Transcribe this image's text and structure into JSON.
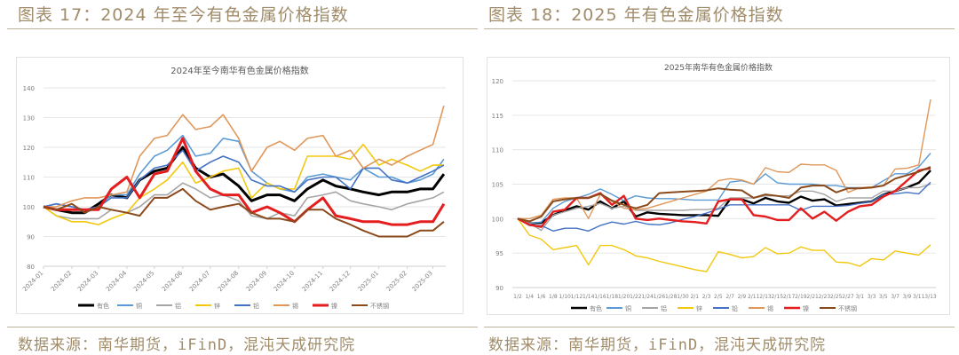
{
  "left": {
    "figure_title": "图表 17：2024 年至今有色金属价格指数",
    "source": "数据来源：南华期货，iFinD，混沌天成研究院"
  },
  "right": {
    "figure_title": "图表 18：2025 年有色金属价格指数",
    "source": "数据来源：南华期货，iFinD，混沌天成研究院"
  },
  "colors": {
    "text": "#a08c6a",
    "rule": "#bfb29a"
  },
  "chart_data": [
    {
      "type": "line",
      "title": "2024年至今南华有色金属价格指数",
      "xlabel": "",
      "ylabel": "",
      "ylim": [
        80,
        140
      ],
      "yticks": [
        80,
        90,
        100,
        110,
        120,
        130,
        140
      ],
      "grid": true,
      "legend": "bottom",
      "tick_labels": [
        "2024-01",
        "2024-02",
        "2024-03",
        "2024-04",
        "2024-05",
        "2024-06",
        "2024-07",
        "2024-08",
        "2024-09",
        "2024-10",
        "2024-11",
        "2024-12",
        "2025-01",
        "2025-02",
        "2025-03"
      ],
      "x": [
        "2024-01-01",
        "2024-01-15",
        "2024-02-01",
        "2024-02-15",
        "2024-03-01",
        "2024-03-15",
        "2024-04-01",
        "2024-04-15",
        "2024-05-01",
        "2024-05-15",
        "2024-06-01",
        "2024-06-15",
        "2024-07-01",
        "2024-07-15",
        "2024-08-01",
        "2024-08-15",
        "2024-09-01",
        "2024-09-15",
        "2024-10-01",
        "2024-10-15",
        "2024-11-01",
        "2024-11-15",
        "2024-12-01",
        "2024-12-15",
        "2025-01-01",
        "2025-01-15",
        "2025-02-01",
        "2025-02-15",
        "2025-03-01",
        "2025-03-13"
      ],
      "series": [
        {
          "name": "有色",
          "color": "#000000",
          "width": 3,
          "values": [
            100,
            99,
            98,
            98,
            101,
            104,
            103,
            109,
            112,
            113,
            120,
            113,
            110,
            111,
            107,
            102,
            104,
            104,
            102,
            106,
            109,
            107,
            106,
            105,
            104,
            105,
            105,
            106,
            106,
            111
          ]
        },
        {
          "name": "铜",
          "color": "#5b9bd5",
          "width": 1.6,
          "values": [
            100,
            101,
            100,
            99,
            100,
            104,
            104,
            111,
            117,
            119,
            124,
            117,
            118,
            123,
            122,
            112,
            108,
            106,
            105,
            110,
            111,
            110,
            109,
            113,
            110,
            110,
            108,
            109,
            111,
            116
          ]
        },
        {
          "name": "铝",
          "color": "#a5a5a5",
          "width": 1.6,
          "values": [
            100,
            97,
            96,
            96,
            96,
            99,
            98,
            100,
            104,
            104,
            108,
            106,
            103,
            104,
            102,
            97,
            96,
            98,
            97,
            103,
            104,
            105,
            102,
            101,
            100,
            99,
            101,
            102,
            103,
            105
          ]
        },
        {
          "name": "锌",
          "color": "#f2c80f",
          "width": 1.6,
          "values": [
            100,
            97,
            95,
            95,
            94,
            96,
            98,
            103,
            106,
            109,
            115,
            108,
            110,
            112,
            113,
            103,
            108,
            106,
            106,
            117,
            117,
            117,
            116,
            121,
            114,
            116,
            114,
            112,
            114,
            114
          ]
        },
        {
          "name": "铅",
          "color": "#4472c4",
          "width": 1.6,
          "values": [
            100,
            101,
            100,
            99,
            100,
            103,
            103,
            109,
            113,
            114,
            119,
            112,
            115,
            117,
            115,
            109,
            107,
            107,
            105,
            109,
            110,
            110,
            106,
            113,
            113,
            109,
            108,
            110,
            112,
            114
          ]
        },
        {
          "name": "锡",
          "color": "#e0975a",
          "width": 1.6,
          "values": [
            100,
            100,
            102,
            103,
            103,
            104,
            105,
            117,
            123,
            124,
            131,
            126,
            127,
            131,
            123,
            112,
            120,
            122,
            119,
            123,
            124,
            117,
            119,
            113,
            116,
            114,
            117,
            119,
            121,
            134
          ]
        },
        {
          "name": "镍",
          "color": "#e41e1e",
          "width": 3,
          "values": [
            100,
            99,
            99,
            99,
            99,
            106,
            110,
            103,
            111,
            112,
            123,
            112,
            106,
            104,
            104,
            98,
            100,
            98,
            95,
            99,
            103,
            97,
            96,
            95,
            95,
            94,
            94,
            95,
            95,
            101
          ]
        },
        {
          "name": "不锈钢",
          "color": "#8b4a1c",
          "width": 2,
          "values": [
            100,
            99,
            101,
            98,
            100,
            99,
            98,
            97,
            103,
            103,
            106,
            102,
            99,
            100,
            101,
            98,
            96,
            96,
            95,
            99,
            99,
            96,
            94,
            92,
            90,
            90,
            90,
            92,
            92,
            95
          ]
        }
      ]
    },
    {
      "type": "line",
      "title": "2025年南华有色金属价格指数",
      "xlabel": "",
      "ylabel": "",
      "ylim": [
        90,
        120
      ],
      "yticks": [
        90,
        95,
        100,
        105,
        110,
        115,
        120
      ],
      "grid": true,
      "legend": "bottom",
      "x": [
        "1/2",
        "1/4",
        "1/6",
        "1/8",
        "1/10",
        "1/12",
        "1/14",
        "1/16",
        "1/18",
        "1/20",
        "1/22",
        "1/24",
        "1/26",
        "1/28",
        "1/30",
        "2/1",
        "2/3",
        "2/5",
        "2/7",
        "2/9",
        "2/11",
        "2/13",
        "2/15",
        "2/17",
        "2/19",
        "2/21",
        "2/23",
        "2/25",
        "2/27",
        "3/1",
        "3/3",
        "3/5",
        "3/7",
        "3/9",
        "3/11",
        "3/13"
      ],
      "series": [
        {
          "name": "有色",
          "color": "#000000",
          "width": 2.4,
          "values": [
            100,
            99.3,
            99.4,
            100.5,
            101.2,
            101.8,
            101.3,
            102.5,
            101.5,
            102.5,
            100.3,
            100.9,
            100.7,
            100.6,
            100.5,
            100.5,
            100.5,
            100.4,
            102.8,
            102.8,
            102.2,
            103.0,
            102.5,
            102.3,
            103.2,
            102.6,
            102.8,
            101.9,
            102.1,
            102.3,
            102.5,
            103.5,
            104.0,
            104.5,
            105.2,
            107.0
          ]
        },
        {
          "name": "铜",
          "color": "#5b9bd5",
          "width": 1.4,
          "values": [
            100,
            99.3,
            99.5,
            101.5,
            102.5,
            103.0,
            103.5,
            104.3,
            103.5,
            102.6,
            103.3,
            103.0,
            102.9,
            102.9,
            102.8,
            102.7,
            102.7,
            102.7,
            105.3,
            105.5,
            105.0,
            106.5,
            105.2,
            105.0,
            105.0,
            105.0,
            104.8,
            104.8,
            104.5,
            104.5,
            104.5,
            105.5,
            106.5,
            106.5,
            107.5,
            109.5
          ]
        },
        {
          "name": "铝",
          "color": "#a5a5a5",
          "width": 1.4,
          "values": [
            100,
            99.3,
            98.3,
            100.5,
            101.0,
            101.5,
            101.8,
            102.2,
            101.5,
            101.8,
            101.2,
            101.2,
            101.2,
            101.2,
            101.2,
            101.3,
            101.3,
            101.5,
            103.0,
            103.0,
            103.0,
            103.3,
            103.3,
            103.3,
            104.0,
            104.0,
            103.5,
            102.5,
            103.0,
            103.0,
            103.0,
            104.0,
            104.0,
            104.5,
            104.5,
            105.0
          ]
        },
        {
          "name": "锌",
          "color": "#f2c80f",
          "width": 1.4,
          "values": [
            100,
            97.6,
            97.0,
            95.5,
            95.8,
            96.1,
            93.3,
            96.1,
            96.1,
            95.5,
            94.6,
            94.3,
            93.8,
            93.4,
            93.0,
            92.6,
            92.3,
            95.2,
            94.8,
            94.3,
            94.5,
            95.8,
            94.9,
            95.0,
            95.9,
            95.4,
            95.4,
            93.7,
            93.6,
            93.1,
            94.2,
            94.0,
            95.3,
            95.0,
            94.7,
            96.2
          ]
        },
        {
          "name": "铅",
          "color": "#4472c4",
          "width": 1.4,
          "values": [
            100,
            99.0,
            99.0,
            98.2,
            98.6,
            98.6,
            98.2,
            99.0,
            99.5,
            99.2,
            99.6,
            99.2,
            99.1,
            99.4,
            99.9,
            100.3,
            100.8,
            101.4,
            102.0,
            102.0,
            102.0,
            102.0,
            102.0,
            102.0,
            101.2,
            101.8,
            101.8,
            101.8,
            101.9,
            102.2,
            102.5,
            103.5,
            103.6,
            103.8,
            103.6,
            105.3
          ]
        },
        {
          "name": "锡",
          "color": "#e0975a",
          "width": 1.4,
          "values": [
            100,
            100.0,
            100.5,
            102.8,
            103.0,
            103.0,
            100.0,
            103.5,
            102.5,
            101.5,
            101.3,
            101.5,
            102.0,
            102.5,
            103.0,
            103.5,
            104.0,
            105.5,
            105.8,
            105.6,
            105.0,
            107.4,
            106.8,
            106.7,
            107.9,
            107.8,
            107.8,
            107.0,
            103.8,
            104.5,
            104.6,
            104.8,
            107.2,
            107.3,
            107.8,
            117.3
          ]
        },
        {
          "name": "镍",
          "color": "#e41e1e",
          "width": 2.4,
          "values": [
            100,
            99.1,
            98.8,
            101.0,
            101.3,
            103.0,
            103.0,
            103.7,
            102.0,
            103.3,
            100.0,
            99.8,
            100.0,
            99.8,
            99.6,
            99.5,
            99.3,
            102.5,
            102.8,
            102.8,
            100.5,
            100.3,
            99.8,
            99.8,
            101.5,
            100.0,
            101.0,
            99.7,
            101.0,
            101.8,
            102.0,
            103.2,
            104.0,
            105.5,
            107.0,
            107.3
          ]
        },
        {
          "name": "不锈钢",
          "color": "#8b4a1c",
          "width": 2,
          "values": [
            100,
            99.6,
            100.3,
            102.5,
            102.8,
            103.0,
            103.0,
            103.6,
            102.6,
            102.0,
            101.5,
            102.0,
            103.7,
            103.8,
            103.9,
            104.0,
            104.1,
            104.4,
            104.2,
            104.1,
            103.0,
            103.5,
            103.3,
            103.0,
            104.5,
            104.8,
            104.8,
            103.8,
            104.4,
            104.4,
            104.5,
            104.8,
            105.8,
            106.3,
            106.8,
            107.5
          ]
        }
      ]
    }
  ]
}
